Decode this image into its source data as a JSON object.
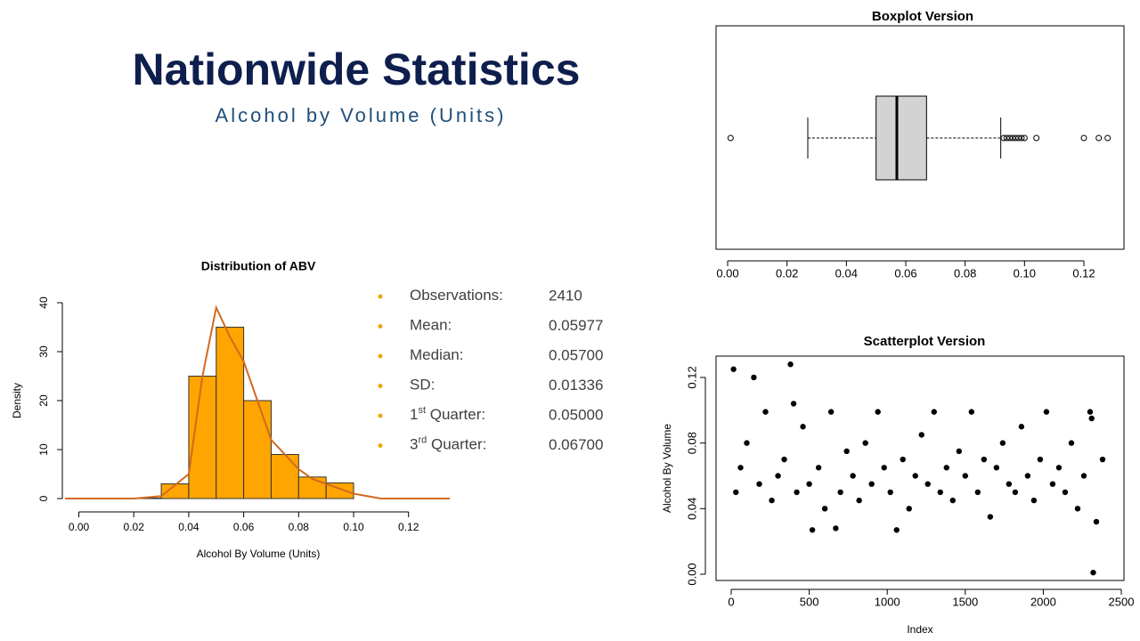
{
  "header": {
    "title": "Nationwide Statistics",
    "subtitle": "Alcohol by Volume (Units)"
  },
  "stats": [
    {
      "label": [
        "Observations:"
      ],
      "value": "2410"
    },
    {
      "label": [
        "Mean:"
      ],
      "value": "0.05977"
    },
    {
      "label": [
        "Median:"
      ],
      "value": "0.05700"
    },
    {
      "label": [
        "SD:"
      ],
      "value": "0.01336"
    },
    {
      "label": [
        "1",
        "st",
        " Quarter:"
      ],
      "value": "0.05000"
    },
    {
      "label": [
        "3",
        "rd",
        " Quarter:"
      ],
      "value": "0.06700"
    }
  ],
  "chart_data": [
    {
      "type": "histogram",
      "title": "Distribution of ABV",
      "x_label": "Alcohol By Volume (Units)",
      "y_label": "Density",
      "bins": [
        0.0,
        0.01,
        0.02,
        0.03,
        0.04,
        0.05,
        0.06,
        0.07,
        0.08,
        0.09,
        0.1
      ],
      "values": [
        0.04,
        0,
        0.1,
        3,
        25,
        35,
        20,
        9,
        4.4,
        3.2
      ],
      "color": "#ffa500",
      "density": {
        "color": "#d2691e",
        "x": [
          -0.005,
          0.02,
          0.03,
          0.04,
          0.045,
          0.05,
          0.055,
          0.06,
          0.065,
          0.07,
          0.075,
          0.08,
          0.085,
          0.09,
          0.1,
          0.11,
          0.135
        ],
        "y": [
          0,
          0,
          0.5,
          5,
          25,
          39,
          33,
          28,
          20,
          12,
          9,
          6,
          4,
          3,
          1,
          0,
          0
        ]
      },
      "xlim": [
        -0.006,
        0.135
      ],
      "xticks": [
        {
          "value": 0,
          "label": "0.00"
        },
        {
          "value": 0.02,
          "label": "0.02"
        },
        {
          "value": 0.04,
          "label": "0.04"
        },
        {
          "value": 0.06,
          "label": "0.06"
        },
        {
          "value": 0.08,
          "label": "0.08"
        },
        {
          "value": 0.1,
          "label": "0.10"
        },
        {
          "value": 0.12,
          "label": "0.12"
        }
      ],
      "ylim": [
        0,
        40
      ],
      "yticks": [
        0,
        10,
        20,
        30,
        40
      ]
    },
    {
      "type": "boxplot",
      "title": "Boxplot Version",
      "whisker_low": 0.027,
      "q1": 0.05,
      "median": 0.057,
      "q3": 0.067,
      "whisker_high": 0.092,
      "outliers": [
        0.001,
        0.093,
        0.094,
        0.095,
        0.096,
        0.097,
        0.098,
        0.099,
        0.1,
        0.104,
        0.12,
        0.125,
        0.128
      ],
      "color": "#d3d3d3",
      "xlim": [
        -0.0039,
        0.1335
      ],
      "xticks": [
        {
          "value": 0,
          "label": "0.00"
        },
        {
          "value": 0.02,
          "label": "0.02"
        },
        {
          "value": 0.04,
          "label": "0.04"
        },
        {
          "value": 0.06,
          "label": "0.06"
        },
        {
          "value": 0.08,
          "label": "0.08"
        },
        {
          "value": 0.1,
          "label": "0.10"
        },
        {
          "value": 0.12,
          "label": "0.12"
        }
      ]
    },
    {
      "type": "scatter",
      "title": "Scatterplot Version",
      "x_label": "Index",
      "y_label": "Alcohol By Volume",
      "color": "#000000",
      "x": [
        15,
        145,
        380,
        2320,
        520,
        1060,
        670,
        30,
        60,
        100,
        180,
        220,
        260,
        300,
        340,
        420,
        460,
        500,
        560,
        600,
        640,
        700,
        740,
        780,
        820,
        860,
        900,
        940,
        980,
        1020,
        1100,
        1140,
        1180,
        1220,
        1260,
        1300,
        1340,
        1380,
        1420,
        1460,
        1500,
        1540,
        1580,
        1620,
        1660,
        1700,
        1740,
        1780,
        1820,
        1860,
        1900,
        1940,
        1980,
        2020,
        2060,
        2100,
        2140,
        2180,
        2220,
        2260,
        2300,
        2340,
        2380,
        400,
        2310
      ],
      "y": [
        0.125,
        0.12,
        0.128,
        0.001,
        0.027,
        0.027,
        0.028,
        0.05,
        0.065,
        0.08,
        0.055,
        0.099,
        0.045,
        0.06,
        0.07,
        0.05,
        0.09,
        0.055,
        0.065,
        0.04,
        0.099,
        0.05,
        0.075,
        0.06,
        0.045,
        0.08,
        0.055,
        0.099,
        0.065,
        0.05,
        0.07,
        0.04,
        0.06,
        0.085,
        0.055,
        0.099,
        0.05,
        0.065,
        0.045,
        0.075,
        0.06,
        0.099,
        0.05,
        0.07,
        0.035,
        0.065,
        0.08,
        0.055,
        0.05,
        0.09,
        0.06,
        0.045,
        0.07,
        0.099,
        0.055,
        0.065,
        0.05,
        0.08,
        0.04,
        0.06,
        0.099,
        0.032,
        0.07,
        0.104,
        0.095
      ],
      "xlim": [
        -97,
        2517
      ],
      "xticks": [
        0,
        500,
        1000,
        1500,
        2000,
        2500
      ],
      "ylim": [
        -0.0038,
        0.133
      ],
      "yticks": [
        {
          "value": 0,
          "label": "0.00"
        },
        {
          "value": 0.04,
          "label": "0.04"
        },
        {
          "value": 0.08,
          "label": "0.08"
        },
        {
          "value": 0.12,
          "label": "0.12"
        }
      ]
    }
  ]
}
